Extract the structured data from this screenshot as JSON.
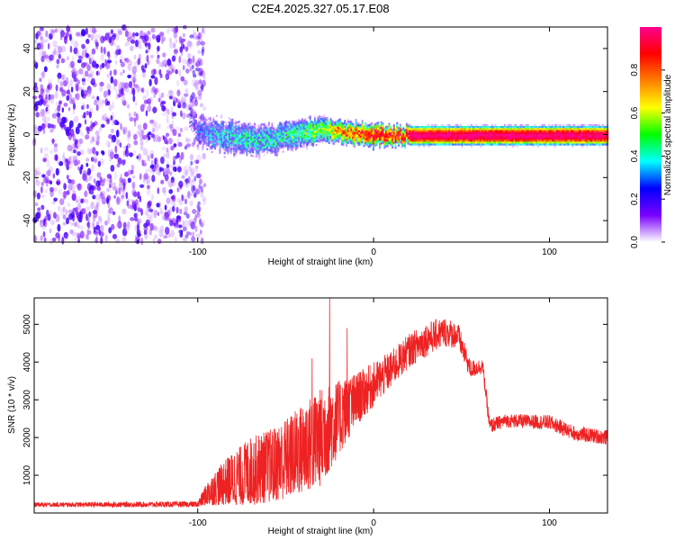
{
  "chart_data": [
    {
      "type": "heatmap",
      "title": "C2E4.2025.327.05.17.E08",
      "xlabel": "Height of straight line (km)",
      "ylabel": "Frequency (Hz)",
      "xlim": [
        -193,
        133
      ],
      "ylim": [
        -50,
        50
      ],
      "x_ticks": [
        -100,
        0,
        100
      ],
      "y_ticks": [
        -40,
        -20,
        0,
        20,
        40
      ],
      "colorbar": {
        "label": "Normalized spectral amplitude",
        "range": [
          0,
          1
        ],
        "ticks": [
          0.0,
          0.2,
          0.4,
          0.6,
          0.8
        ],
        "colors": [
          "#ffffff",
          "#7a00ff",
          "#0000ff",
          "#00ffff",
          "#00ff00",
          "#ffff00",
          "#ff7f00",
          "#ff0000",
          "#ff0090"
        ]
      },
      "noise_region": {
        "x": [
          -193,
          -100
        ],
        "freq": [
          -50,
          50
        ],
        "amplitude": [
          0.0,
          0.25
        ]
      },
      "signal_band": [
        {
          "x": -105,
          "center": 8,
          "halfwidth": 4,
          "amp": 0.25
        },
        {
          "x": -100,
          "center": 2,
          "halfwidth": 5,
          "amp": 0.35
        },
        {
          "x": -90,
          "center": 0,
          "halfwidth": 6,
          "amp": 0.45
        },
        {
          "x": -75,
          "center": -2,
          "halfwidth": 6,
          "amp": 0.5
        },
        {
          "x": -60,
          "center": -2,
          "halfwidth": 5,
          "amp": 0.5
        },
        {
          "x": -45,
          "center": 1,
          "halfwidth": 5,
          "amp": 0.55
        },
        {
          "x": -30,
          "center": 2,
          "halfwidth": 4,
          "amp": 0.65
        },
        {
          "x": -20,
          "center": 2,
          "halfwidth": 3,
          "amp": 0.85
        },
        {
          "x": -10,
          "center": 1,
          "halfwidth": 3,
          "amp": 0.9
        },
        {
          "x": 0,
          "center": 0,
          "halfwidth": 3,
          "amp": 1.0
        },
        {
          "x": 15,
          "center": 0,
          "halfwidth": 2,
          "amp": 1.0
        },
        {
          "x": 60,
          "center": 0,
          "halfwidth": 2,
          "amp": 1.0
        },
        {
          "x": 100,
          "center": 0,
          "halfwidth": 2,
          "amp": 1.0
        },
        {
          "x": 133,
          "center": 0,
          "halfwidth": 2,
          "amp": 1.0
        }
      ]
    },
    {
      "type": "line",
      "xlabel": "Height of straight line (km)",
      "ylabel": "SNR (10 * v/v)",
      "xlim": [
        -193,
        133
      ],
      "ylim": [
        0,
        5700
      ],
      "x_ticks": [
        -100,
        0,
        100
      ],
      "y_ticks": [
        1000,
        2000,
        3000,
        4000,
        5000
      ],
      "series": [
        {
          "name": "SNR",
          "color": "#ee2222",
          "envelope": [
            {
              "x": -193,
              "mean": 220,
              "amp": 60
            },
            {
              "x": -100,
              "mean": 230,
              "amp": 80
            },
            {
              "x": -95,
              "mean": 500,
              "amp": 300
            },
            {
              "x": -85,
              "mean": 800,
              "amp": 600
            },
            {
              "x": -70,
              "mean": 1100,
              "amp": 900
            },
            {
              "x": -55,
              "mean": 1300,
              "amp": 1000
            },
            {
              "x": -40,
              "mean": 1700,
              "amp": 1200
            },
            {
              "x": -30,
              "mean": 2000,
              "amp": 1300
            },
            {
              "x": -20,
              "mean": 2500,
              "amp": 1000
            },
            {
              "x": -10,
              "mean": 3000,
              "amp": 700
            },
            {
              "x": 0,
              "mean": 3400,
              "amp": 600
            },
            {
              "x": 10,
              "mean": 3800,
              "amp": 500
            },
            {
              "x": 20,
              "mean": 4300,
              "amp": 450
            },
            {
              "x": 30,
              "mean": 4600,
              "amp": 450
            },
            {
              "x": 40,
              "mean": 4800,
              "amp": 400
            },
            {
              "x": 48,
              "mean": 4700,
              "amp": 350
            },
            {
              "x": 55,
              "mean": 3800,
              "amp": 250
            },
            {
              "x": 62,
              "mean": 3900,
              "amp": 200
            },
            {
              "x": 66,
              "mean": 2300,
              "amp": 200
            },
            {
              "x": 75,
              "mean": 2450,
              "amp": 180
            },
            {
              "x": 100,
              "mean": 2400,
              "amp": 200
            },
            {
              "x": 115,
              "mean": 2100,
              "amp": 200
            },
            {
              "x": 133,
              "mean": 2000,
              "amp": 200
            }
          ],
          "spikes": [
            {
              "x": -25,
              "y": 5700
            },
            {
              "x": -15,
              "y": 4900
            },
            {
              "x": -35,
              "y": 4100
            }
          ]
        }
      ]
    }
  ]
}
